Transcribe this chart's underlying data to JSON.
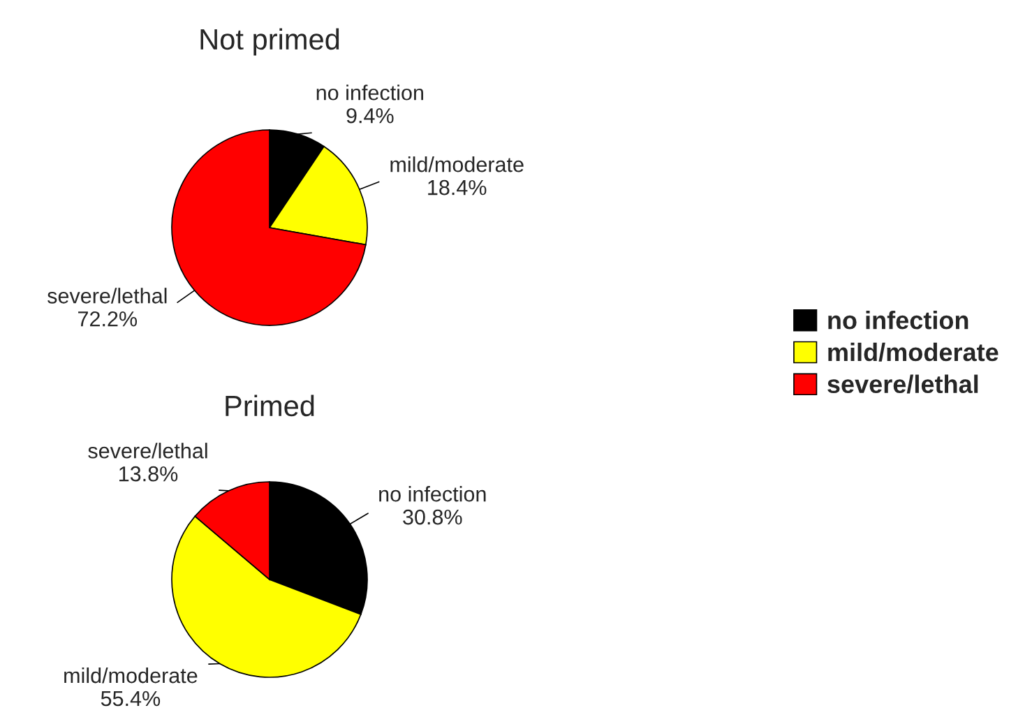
{
  "chart_data": [
    {
      "type": "pie",
      "title": "Not primed",
      "categories": [
        "no infection",
        "mild/moderate",
        "severe/lethal"
      ],
      "values": [
        9.4,
        18.4,
        72.2
      ],
      "value_labels": [
        "9.4%",
        "18.4%",
        "72.2%"
      ],
      "colors": [
        "#000000",
        "#ffff00",
        "#ff0000"
      ],
      "legend": "right"
    },
    {
      "type": "pie",
      "title": "Primed",
      "categories": [
        "no infection",
        "mild/moderate",
        "severe/lethal"
      ],
      "values": [
        30.8,
        55.4,
        13.8
      ],
      "value_labels": [
        "30.8%",
        "55.4%",
        "13.8%"
      ],
      "colors": [
        "#000000",
        "#ffff00",
        "#ff0000"
      ],
      "legend": false
    }
  ]
}
